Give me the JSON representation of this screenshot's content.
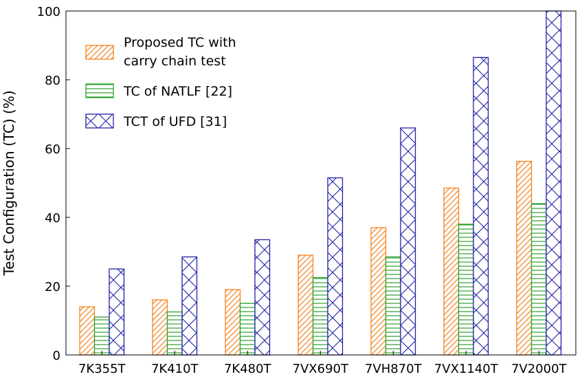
{
  "chart_data": {
    "type": "bar",
    "categories": [
      "7K355T",
      "7K410T",
      "7K480T",
      "7VX690T",
      "7VH870T",
      "7VX1140T",
      "7V2000T"
    ],
    "series": [
      {
        "name": "Proposed TC with carry chain test",
        "legend_lines": [
          "Proposed TC with",
          "carry chain test"
        ],
        "values": [
          14,
          16,
          19,
          29,
          37,
          48.5,
          56.3
        ],
        "color": "#f58220",
        "pattern": "diagonal"
      },
      {
        "name": "TC of NATLF [22]",
        "legend_lines": [
          "TC of NATLF [22]"
        ],
        "values": [
          11,
          12.5,
          15,
          22.5,
          28.5,
          38,
          44
        ],
        "color": "#2ca02c",
        "pattern": "horizontal"
      },
      {
        "name": "TCT of UFD [31]",
        "legend_lines": [
          "TCT of UFD [31]"
        ],
        "values": [
          25,
          28.5,
          33.5,
          51.5,
          66,
          86.5,
          100
        ],
        "color": "#1f1fa8",
        "pattern": "crosshatch"
      }
    ],
    "ylabel": "Test Configuration (TC)     (%)",
    "xlabel": "",
    "ylim": [
      0,
      100
    ],
    "yticks": [
      0,
      20,
      40,
      60,
      80,
      100
    ],
    "legend_position": "top-left",
    "grid": false
  }
}
